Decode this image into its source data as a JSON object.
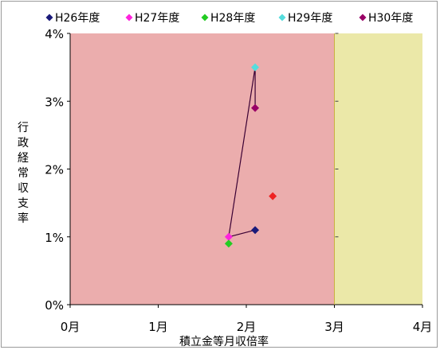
{
  "chart_data": {
    "type": "scatter",
    "xlabel": "積立金等月収倍率",
    "ylabel": "行政経常収支率",
    "x_ticks": [
      "0月",
      "1月",
      "2月",
      "3月",
      "4月"
    ],
    "y_ticks": [
      "0%",
      "1%",
      "2%",
      "3%",
      "4%"
    ],
    "xlim": [
      0,
      4
    ],
    "ylim": [
      0,
      4
    ],
    "legend_position": "top",
    "regions": [
      {
        "x_from": 0,
        "x_to": 3,
        "color": "#ebadad"
      },
      {
        "x_from": 3,
        "x_to": 4,
        "color": "#ebe8a8"
      }
    ],
    "series": [
      {
        "name": "H26年度",
        "color": "#1a1a7a",
        "values": [
          [
            2.1,
            1.1
          ]
        ]
      },
      {
        "name": "H27年度",
        "color": "#ff22dd",
        "values": [
          [
            1.8,
            1.0
          ]
        ]
      },
      {
        "name": "H28年度",
        "color": "#22cc22",
        "values": [
          [
            1.8,
            0.9
          ]
        ]
      },
      {
        "name": "H29年度",
        "color": "#55dddd",
        "values": [
          [
            2.1,
            3.5
          ]
        ]
      },
      {
        "name": "H30年度",
        "color": "#990066",
        "values": [
          [
            2.1,
            2.9
          ]
        ]
      }
    ],
    "connector_path": [
      [
        2.1,
        1.1
      ],
      [
        1.8,
        1.0
      ],
      [
        2.1,
        3.5
      ],
      [
        2.1,
        2.9
      ]
    ],
    "connector_color": "#3a0033",
    "extra_points": [
      {
        "x": 2.3,
        "y": 1.6,
        "color": "#ee2222"
      }
    ]
  }
}
